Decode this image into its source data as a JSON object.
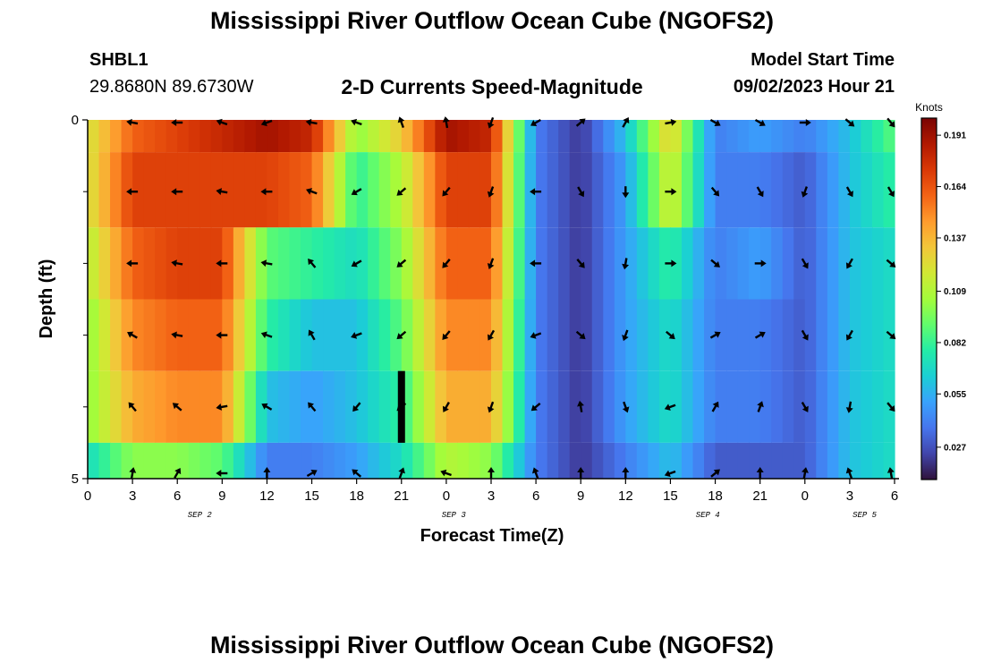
{
  "header": {
    "title": "Mississippi River Outflow Ocean Cube (NGOFS2)",
    "station": "SHBL1",
    "coords": "29.8680N  89.6730W",
    "subtitle": "2-D Currents Speed-Magnitude",
    "model_start_label": "Model Start Time",
    "model_start_value": "09/02/2023 Hour 21"
  },
  "footer": {
    "title": "Mississippi River Outflow Ocean Cube (NGOFS2)"
  },
  "colors": {
    "colormap": [
      "#30123b",
      "#4145ab",
      "#4675ed",
      "#39a2fc",
      "#1bcfd4",
      "#24eca6",
      "#61fc6c",
      "#a4fc3b",
      "#d1e834",
      "#f3c63a",
      "#fe9b2d",
      "#f36315",
      "#d93806",
      "#b11901",
      "#7a0403"
    ],
    "arrow": "#000000",
    "missing": "#000000"
  },
  "chart_data": {
    "type": "heatmap",
    "title": "2-D Currents Speed-Magnitude",
    "xlabel": "Forecast Time(Z)",
    "ylabel": "Depth (ft)",
    "units": "Knots",
    "x_hours_start": 0,
    "x_hours_end": 54,
    "x_ticks": [
      0,
      3,
      6,
      9,
      12,
      15,
      18,
      21,
      24,
      27,
      30,
      33,
      36,
      39,
      42,
      45,
      48,
      51,
      54
    ],
    "x_tick_labels": [
      "0",
      "3",
      "6",
      "9",
      "12",
      "15",
      "18",
      "21",
      "0",
      "3",
      "6",
      "9",
      "12",
      "15",
      "18",
      "21",
      "0",
      "3",
      "6"
    ],
    "date_labels": [
      {
        "hour": 7.5,
        "text": "SEP 2"
      },
      {
        "hour": 24.5,
        "text": "SEP 3"
      },
      {
        "hour": 41.5,
        "text": "SEP 4"
      },
      {
        "hour": 52,
        "text": "SEP 5"
      }
    ],
    "y_range": [
      0,
      5
    ],
    "y_tick_labels": [
      {
        "depth": 0,
        "label": "0"
      },
      {
        "depth": 5,
        "label": "5"
      }
    ],
    "y_minor_ticks": [
      1,
      2,
      3,
      4
    ],
    "colorbar": {
      "label": "Knots",
      "range": [
        0.01,
        0.2
      ],
      "ticks": [
        0.191,
        0.164,
        0.137,
        0.109,
        0.082,
        0.055,
        0.027
      ]
    },
    "layers": [
      {
        "depth_top": 0,
        "depth_bottom": 0.45,
        "speeds": [
          0.12,
          0.16,
          0.17,
          0.18,
          0.19,
          0.18,
          0.1,
          0.13,
          0.19,
          0.18,
          0.04,
          0.02,
          0.06,
          0.13,
          0.04,
          0.05,
          0.04,
          0.06,
          0.09
        ]
      },
      {
        "depth_top": 0.45,
        "depth_bottom": 1.5,
        "speeds": [
          0.12,
          0.17,
          0.17,
          0.17,
          0.17,
          0.16,
          0.08,
          0.11,
          0.17,
          0.17,
          0.04,
          0.02,
          0.05,
          0.12,
          0.04,
          0.04,
          0.03,
          0.06,
          0.08
        ]
      },
      {
        "depth_top": 1.5,
        "depth_bottom": 2.5,
        "speeds": [
          0.11,
          0.16,
          0.17,
          0.17,
          0.09,
          0.08,
          0.07,
          0.1,
          0.16,
          0.16,
          0.04,
          0.02,
          0.05,
          0.08,
          0.04,
          0.05,
          0.03,
          0.06,
          0.07
        ]
      },
      {
        "depth_top": 2.5,
        "depth_bottom": 3.5,
        "speeds": [
          0.1,
          0.15,
          0.16,
          0.16,
          0.08,
          0.06,
          0.06,
          0.09,
          0.15,
          0.15,
          0.04,
          0.02,
          0.05,
          0.07,
          0.04,
          0.04,
          0.03,
          0.06,
          0.07
        ]
      },
      {
        "depth_top": 3.5,
        "depth_bottom": 4.5,
        "speeds": [
          0.1,
          0.14,
          0.15,
          0.15,
          0.06,
          0.05,
          0.06,
          0.08,
          0.14,
          0.14,
          0.04,
          0.02,
          0.05,
          0.07,
          0.04,
          0.04,
          0.03,
          0.06,
          0.07
        ]
      },
      {
        "depth_top": 4.5,
        "depth_bottom": 5,
        "speeds": [
          0.07,
          0.1,
          0.1,
          0.09,
          0.04,
          0.04,
          0.05,
          0.07,
          0.11,
          0.1,
          0.04,
          0.02,
          0.04,
          0.06,
          0.03,
          0.03,
          0.03,
          0.06,
          0.07
        ]
      }
    ],
    "missing_block": {
      "hour": 21,
      "depth_from": 3.5,
      "depth_to": 4.5
    },
    "arrow_hours": [
      3,
      6,
      9,
      12,
      15,
      18,
      21,
      24,
      27,
      30,
      33,
      36,
      39,
      42,
      45,
      48,
      51,
      54
    ],
    "arrow_rows": [
      {
        "depth": 0,
        "angles": [
          170,
          180,
          160,
          200,
          170,
          160,
          110,
          100,
          250,
          210,
          40,
          60,
          10,
          330,
          330,
          0,
          320,
          310
        ]
      },
      {
        "depth": 1,
        "angles": [
          180,
          180,
          170,
          180,
          160,
          210,
          220,
          230,
          250,
          180,
          300,
          270,
          0,
          310,
          300,
          250,
          300,
          300
        ]
      },
      {
        "depth": 2,
        "angles": [
          180,
          170,
          180,
          170,
          130,
          210,
          220,
          230,
          250,
          180,
          310,
          260,
          0,
          320,
          0,
          300,
          240,
          320
        ]
      },
      {
        "depth": 3,
        "angles": [
          150,
          170,
          180,
          160,
          120,
          200,
          220,
          230,
          240,
          200,
          320,
          250,
          320,
          30,
          30,
          300,
          240,
          320
        ]
      },
      {
        "depth": 4,
        "angles": [
          130,
          140,
          190,
          150,
          130,
          230,
          220,
          240,
          250,
          220,
          100,
          290,
          200,
          60,
          70,
          300,
          260,
          310
        ]
      },
      {
        "depth": 5,
        "angles": [
          80,
          60,
          180,
          90,
          30,
          140,
          70,
          160,
          90,
          110,
          90,
          90,
          200,
          40,
          90,
          80,
          110,
          100
        ]
      }
    ]
  }
}
